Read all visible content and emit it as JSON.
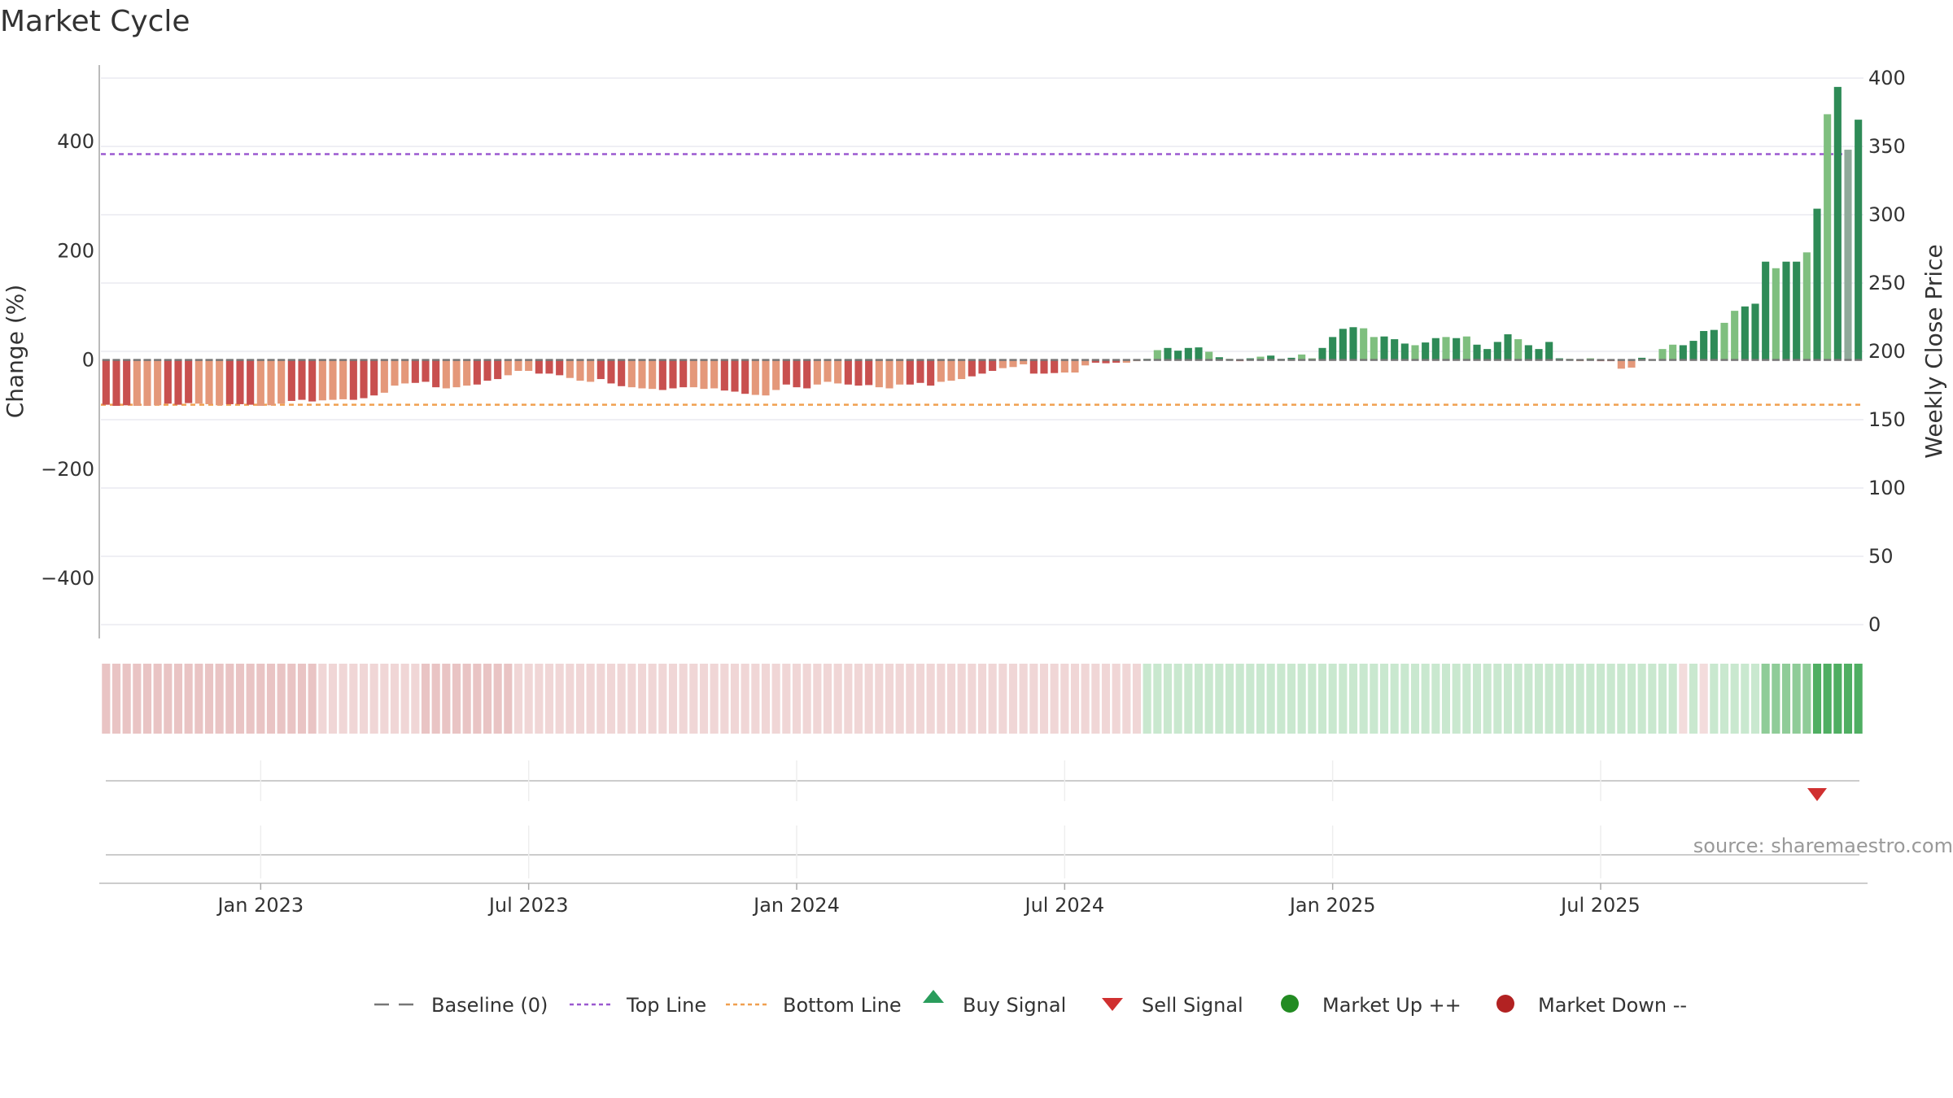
{
  "chart_data": {
    "type": "bar",
    "title": "Market Cycle",
    "ylabel_left": "Change (%)",
    "ylabel_right": "Weekly Close Price",
    "ylim_left": [
      -510,
      540
    ],
    "ylim_right": [
      0,
      400
    ],
    "yticks_left": [
      400,
      200,
      0,
      -200,
      -400
    ],
    "ytick_labels_left": [
      "400",
      "200",
      "0",
      "−200",
      "−400"
    ],
    "yticks_right": [
      0,
      50,
      100,
      150,
      200,
      250,
      300,
      350,
      400
    ],
    "ytick_labels_right": [
      "0",
      "50",
      "100",
      "150",
      "200",
      "250",
      "300",
      "350",
      "400"
    ],
    "x_tick_labels": [
      "Jan 2023",
      "Jul 2023",
      "Jan 2024",
      "Jul 2024",
      "Jan 2025",
      "Jul 2025"
    ],
    "x_tick_week_index": [
      15,
      41,
      67,
      93,
      119,
      145
    ],
    "top_line_value": 377,
    "bottom_line_value": -82,
    "weekly_change_pct": [
      -82,
      -84,
      -83,
      -84,
      -84,
      -83,
      -80,
      -82,
      -79,
      -80,
      -81,
      -83,
      -81,
      -81,
      -82,
      -84,
      -83,
      -80,
      -75,
      -73,
      -76,
      -74,
      -73,
      -72,
      -73,
      -70,
      -65,
      -60,
      -47,
      -43,
      -42,
      -40,
      -50,
      -52,
      -50,
      -47,
      -45,
      -38,
      -35,
      -28,
      -20,
      -20,
      -25,
      -25,
      -28,
      -33,
      -38,
      -40,
      -35,
      -43,
      -48,
      -50,
      -52,
      -53,
      -55,
      -52,
      -50,
      -50,
      -53,
      -52,
      -56,
      -58,
      -62,
      -64,
      -65,
      -55,
      -45,
      -50,
      -52,
      -45,
      -40,
      -43,
      -45,
      -47,
      -46,
      -50,
      -52,
      -45,
      -45,
      -42,
      -47,
      -40,
      -38,
      -35,
      -30,
      -25,
      -20,
      -15,
      -13,
      -8,
      -25,
      -25,
      -24,
      -23,
      -23,
      -10,
      -5,
      -6,
      -5,
      -5,
      -2,
      2,
      18,
      22,
      17,
      22,
      23,
      15,
      5,
      2,
      -1,
      3,
      6,
      8,
      2,
      4,
      10,
      3,
      22,
      42,
      57,
      60,
      58,
      42,
      43,
      38,
      30,
      27,
      32,
      40,
      42,
      40,
      43,
      28,
      20,
      33,
      47,
      38,
      27,
      20,
      33,
      3,
      2,
      -2,
      3,
      -1,
      -1,
      -16,
      -14,
      4,
      1,
      20,
      28,
      27,
      35,
      53,
      55,
      68,
      90,
      98,
      103,
      180,
      168,
      180,
      180,
      197,
      277,
      450,
      500,
      385,
      440
    ],
    "series_colors": {
      "strong_negative": "#c8504f",
      "weak_negative": "#e4987a",
      "strong_positive": "#2e8b57",
      "weak_positive": "#7fbf7f"
    },
    "strength_strip": "Per-week cycle strength shown as a colored band under the bars (red = down phase, green = up phase, saturation = intensity)",
    "sell_signal_week_index": 166,
    "buy_signal_week_index": null,
    "source": "source: sharemaestro.com",
    "legend": [
      {
        "label": "Baseline (0)",
        "icon": "dash-gray-line"
      },
      {
        "label": "Top Line",
        "icon": "dotted-purple-line"
      },
      {
        "label": "Bottom Line",
        "icon": "dotted-orange-line"
      },
      {
        "label": "Buy Signal",
        "icon": "green-up-triangle"
      },
      {
        "label": "Sell Signal",
        "icon": "red-down-triangle"
      },
      {
        "label": "Market Up ++",
        "icon": "green-dot"
      },
      {
        "label": "Market Down --",
        "icon": "red-dot"
      }
    ]
  },
  "colors": {
    "top_line": "#9b59d0",
    "bottom_line": "#f0a050",
    "baseline": "#777777",
    "buy": "#2a9d5c",
    "sell": "#d03030",
    "market_up": "#228b22",
    "market_down": "#b22222"
  }
}
